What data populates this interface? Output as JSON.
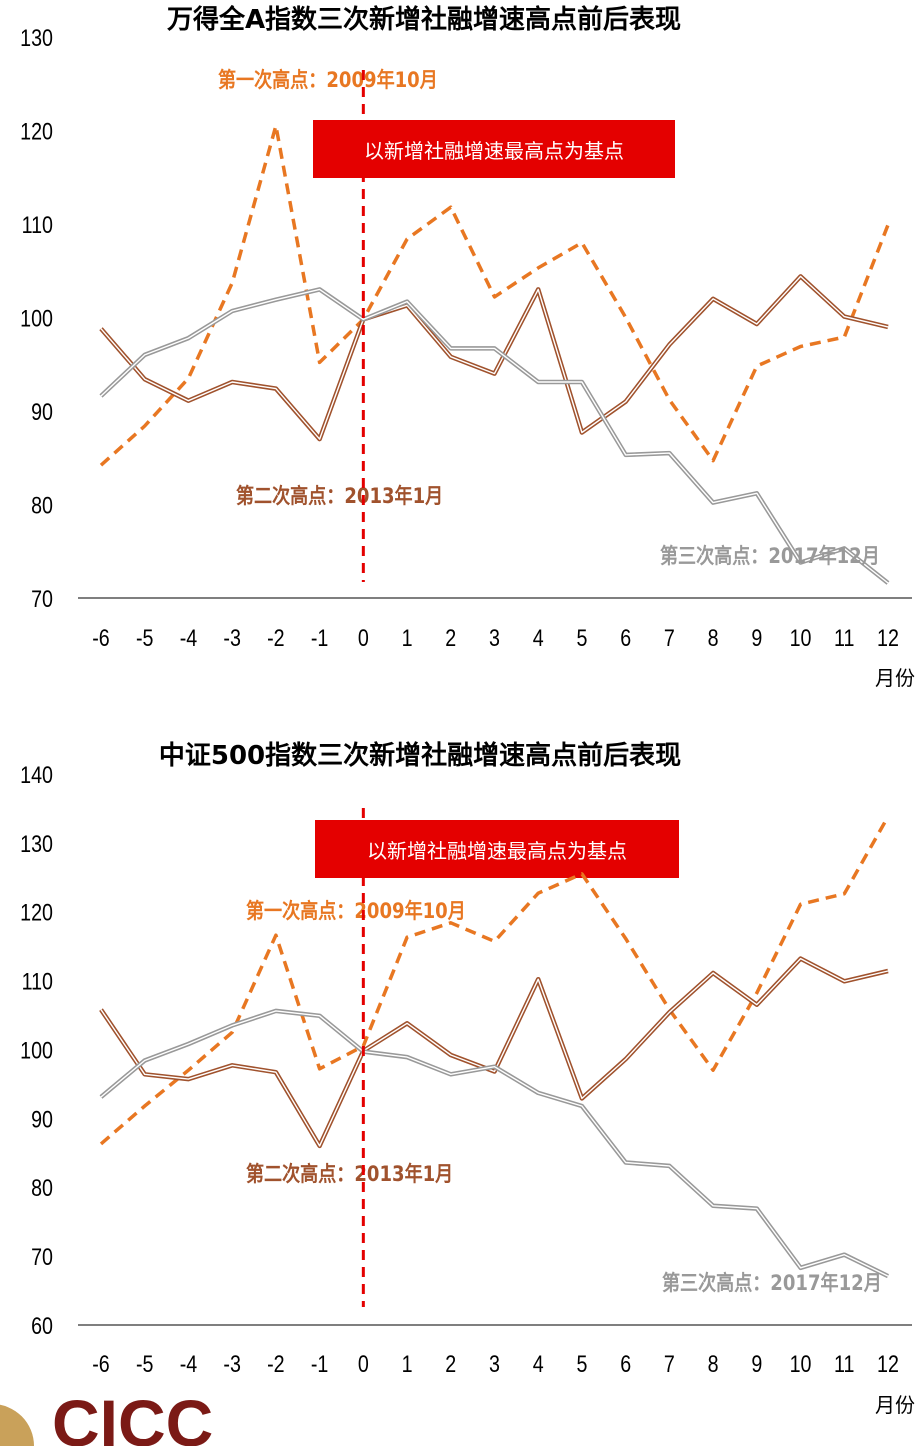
{
  "chart_data": [
    {
      "type": "line",
      "title": "万得全A指数三次新增社融增速高点前后表现",
      "xlabel": "月份",
      "ylabel": "",
      "ylim": [
        70,
        130
      ],
      "yticks": [
        70,
        80,
        90,
        100,
        110,
        120,
        130
      ],
      "x": [
        -6,
        -5,
        -4,
        -3,
        -2,
        -1,
        0,
        1,
        2,
        3,
        4,
        5,
        6,
        7,
        8,
        9,
        10,
        11,
        12
      ],
      "grid": false,
      "base_line_x": 0,
      "base_label": "以新增社融增速最高点为基点",
      "series": [
        {
          "name": "第一次高点：2009年10月",
          "color": "#E87722",
          "style": "dashed",
          "values": [
            84.2,
            88.4,
            93.5,
            103.7,
            120.5,
            95.2,
            99.8,
            108.4,
            111.8,
            102.2,
            105.3,
            108.0,
            100.0,
            91.2,
            84.7,
            94.8,
            96.9,
            97.9,
            109.9
          ]
        },
        {
          "name": "第二次高点：2013年1月",
          "color": "#A0522D",
          "style": "double",
          "values": [
            98.8,
            93.4,
            91.1,
            93.1,
            92.4,
            87.0,
            99.8,
            101.3,
            95.8,
            94.0,
            103.0,
            87.7,
            91.0,
            97.1,
            102.0,
            99.3,
            104.4,
            100.1,
            99.0
          ]
        },
        {
          "name": "第三次高点：2017年12月",
          "color": "#999999",
          "style": "double",
          "values": [
            91.6,
            96.0,
            97.8,
            100.7,
            101.9,
            103.0,
            99.8,
            101.7,
            96.7,
            96.7,
            93.1,
            93.1,
            85.3,
            85.5,
            80.2,
            81.2,
            73.8,
            75.3,
            71.6
          ]
        }
      ]
    },
    {
      "type": "line",
      "title": "中证500指数三次新增社融增速高点前后表现",
      "xlabel": "月份",
      "ylabel": "",
      "ylim": [
        60,
        140
      ],
      "yticks": [
        60,
        70,
        80,
        90,
        100,
        110,
        120,
        130,
        140
      ],
      "x": [
        -6,
        -5,
        -4,
        -3,
        -2,
        -1,
        0,
        1,
        2,
        3,
        4,
        5,
        6,
        7,
        8,
        9,
        10,
        11,
        12
      ],
      "grid": false,
      "base_line_x": 0,
      "base_label": "以新增社融增速最高点为基点",
      "series": [
        {
          "name": "第一次高点：2009年10月",
          "color": "#E87722",
          "style": "dashed",
          "values": [
            86.3,
            91.8,
            97.0,
            102.5,
            116.6,
            97.2,
            100.5,
            116.3,
            118.4,
            115.7,
            122.7,
            125.5,
            116.1,
            105.8,
            97.0,
            108.2,
            121.1,
            122.6,
            133.8
          ]
        },
        {
          "name": "第二次高点：2013年1月",
          "color": "#A0522D",
          "style": "double",
          "values": [
            105.8,
            96.4,
            95.7,
            97.7,
            96.7,
            86.0,
            99.8,
            103.8,
            99.2,
            96.8,
            110.2,
            92.9,
            98.6,
            105.4,
            111.1,
            106.5,
            113.2,
            109.9,
            111.4
          ]
        },
        {
          "name": "第三次高点：2017年12月",
          "color": "#999999",
          "style": "double",
          "values": [
            93.1,
            98.4,
            100.8,
            103.5,
            105.6,
            104.9,
            99.7,
            98.9,
            96.4,
            97.5,
            93.7,
            91.8,
            83.6,
            83.1,
            77.3,
            76.9,
            68.3,
            70.2,
            67.1
          ]
        }
      ]
    }
  ],
  "logo": {
    "text": "CICC"
  },
  "colors": {
    "base_box": "#E40000",
    "base_line": "#E40000",
    "axis": "#7F7F7F",
    "text": "#000000"
  }
}
